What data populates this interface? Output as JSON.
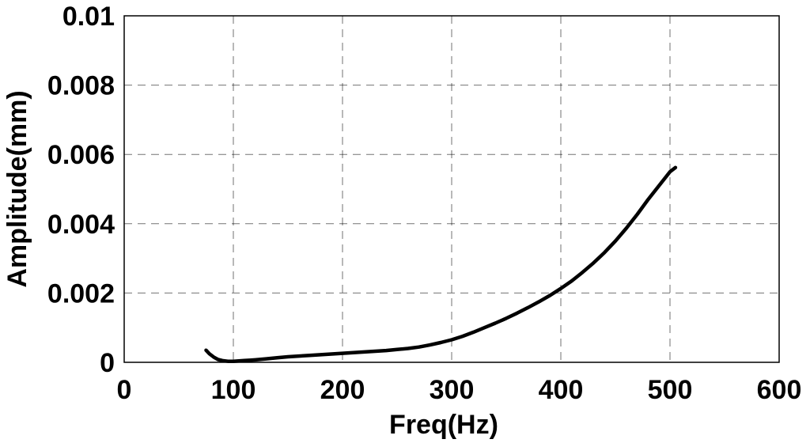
{
  "chart_data": {
    "type": "line",
    "title": "",
    "xlabel": "Freq(Hz)",
    "ylabel": "Amplitude(mm)",
    "xlim": [
      0,
      600
    ],
    "ylim": [
      0,
      0.01
    ],
    "x_ticks": [
      0,
      100,
      200,
      300,
      400,
      500,
      600
    ],
    "y_ticks": [
      0,
      0.002,
      0.004,
      0.006,
      0.008,
      0.01
    ],
    "x_tick_labels": [
      "0",
      "100",
      "200",
      "300",
      "400",
      "500",
      "600"
    ],
    "y_tick_labels": [
      "0",
      "0.002",
      "0.004",
      "0.006",
      "0.008",
      "0.01"
    ],
    "grid": true,
    "series": [
      {
        "color": "#000000",
        "x": [
          75,
          78,
          82,
          86,
          90,
          95,
          100,
          105,
          110,
          115,
          120,
          130,
          140,
          150,
          160,
          170,
          180,
          190,
          200,
          210,
          220,
          230,
          240,
          250,
          260,
          270,
          280,
          290,
          300,
          310,
          320,
          330,
          340,
          350,
          360,
          370,
          380,
          390,
          400,
          410,
          420,
          430,
          440,
          450,
          460,
          470,
          480,
          490,
          500,
          505
        ],
        "y": [
          0.00035,
          0.00025,
          0.00015,
          8e-05,
          5e-05,
          3e-05,
          3e-05,
          4e-05,
          5e-05,
          6e-05,
          7e-05,
          0.0001,
          0.00013,
          0.00016,
          0.00018,
          0.0002,
          0.00022,
          0.00024,
          0.00026,
          0.00028,
          0.0003,
          0.00032,
          0.00034,
          0.00037,
          0.0004,
          0.00044,
          0.0005,
          0.00057,
          0.00065,
          0.00075,
          0.00087,
          0.001,
          0.00113,
          0.00127,
          0.00142,
          0.00158,
          0.00175,
          0.00193,
          0.00213,
          0.00235,
          0.0026,
          0.00287,
          0.00317,
          0.0035,
          0.00387,
          0.00427,
          0.0047,
          0.0051,
          0.0055,
          0.00562
        ]
      }
    ]
  }
}
